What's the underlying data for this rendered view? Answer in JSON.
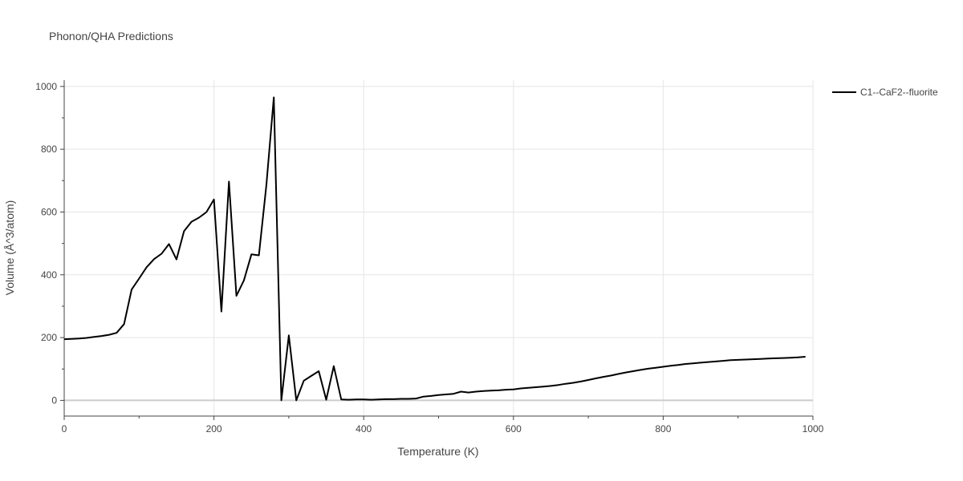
{
  "chart_data": {
    "type": "line",
    "title": "Phonon/QHA Predictions",
    "xlabel": "Temperature (K)",
    "ylabel": "Volume (Å^3/atom)",
    "xlim": [
      0,
      1000
    ],
    "ylim": [
      -50,
      1020
    ],
    "x_ticks": [
      0,
      200,
      400,
      600,
      800,
      1000
    ],
    "y_ticks": [
      0,
      200,
      400,
      600,
      800,
      1000
    ],
    "grid": true,
    "legend_position": "top-right",
    "colors": {
      "series": "#000000",
      "grid": "#e5e5e5",
      "zeroline": "#cccccc",
      "text": "#444444"
    },
    "series": [
      {
        "name": "C1--CaF2--fluorite",
        "x": [
          0,
          10,
          20,
          30,
          40,
          50,
          60,
          70,
          80,
          90,
          100,
          110,
          120,
          130,
          140,
          150,
          160,
          170,
          180,
          190,
          200,
          210,
          220,
          230,
          240,
          250,
          260,
          270,
          280,
          290,
          300,
          310,
          320,
          330,
          340,
          350,
          360,
          370,
          380,
          390,
          400,
          410,
          420,
          430,
          440,
          450,
          460,
          470,
          480,
          490,
          500,
          510,
          520,
          530,
          540,
          550,
          560,
          570,
          580,
          590,
          600,
          610,
          620,
          630,
          640,
          650,
          660,
          670,
          680,
          690,
          700,
          710,
          720,
          730,
          740,
          750,
          760,
          770,
          780,
          790,
          800,
          810,
          820,
          830,
          840,
          850,
          860,
          870,
          880,
          890,
          900,
          910,
          920,
          930,
          940,
          950,
          960,
          970,
          980,
          990
        ],
        "y": [
          195,
          196,
          197,
          199,
          202,
          205,
          209,
          215,
          243,
          353,
          388,
          424,
          450,
          467,
          498,
          449,
          539,
          569,
          582,
          600,
          640,
          283,
          697,
          333,
          382,
          465,
          462,
          685,
          965,
          0,
          207,
          0,
          63,
          78,
          93,
          2,
          109,
          3,
          2,
          3,
          3,
          2,
          3,
          4,
          4,
          5,
          5,
          6,
          12,
          14,
          17,
          19,
          21,
          28,
          25,
          28,
          30,
          31,
          32,
          34,
          35,
          38,
          40,
          42,
          44,
          46,
          49,
          53,
          56,
          60,
          65,
          70,
          75,
          79,
          84,
          89,
          93,
          97,
          101,
          104,
          107,
          110,
          113,
          116,
          118,
          120,
          122,
          124,
          126,
          128,
          129,
          130,
          131,
          132,
          133,
          134,
          135,
          136,
          137,
          139
        ]
      }
    ]
  }
}
